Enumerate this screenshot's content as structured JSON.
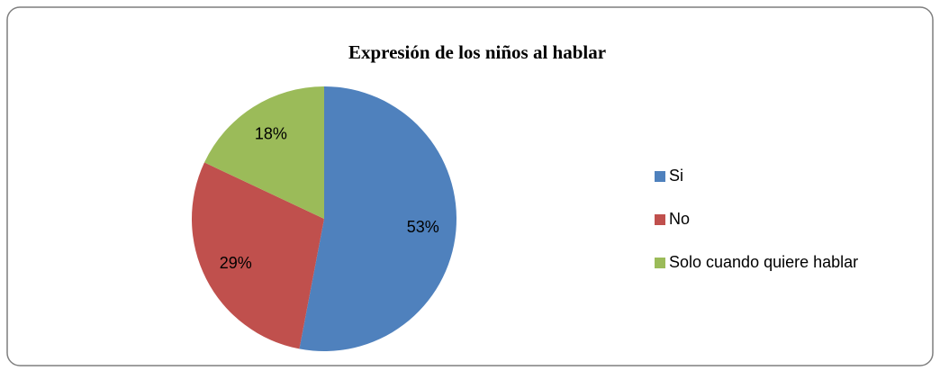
{
  "chart_data": {
    "type": "pie",
    "title": "Expresión de los niños al hablar",
    "categories": [
      "Si",
      "No",
      "Solo cuando quiere hablar"
    ],
    "values": [
      53,
      29,
      18
    ],
    "value_labels": [
      "53%",
      "29%",
      "18%"
    ],
    "colors": [
      "#4f81bd",
      "#c0504d",
      "#9bbb59"
    ],
    "legend": "right"
  }
}
